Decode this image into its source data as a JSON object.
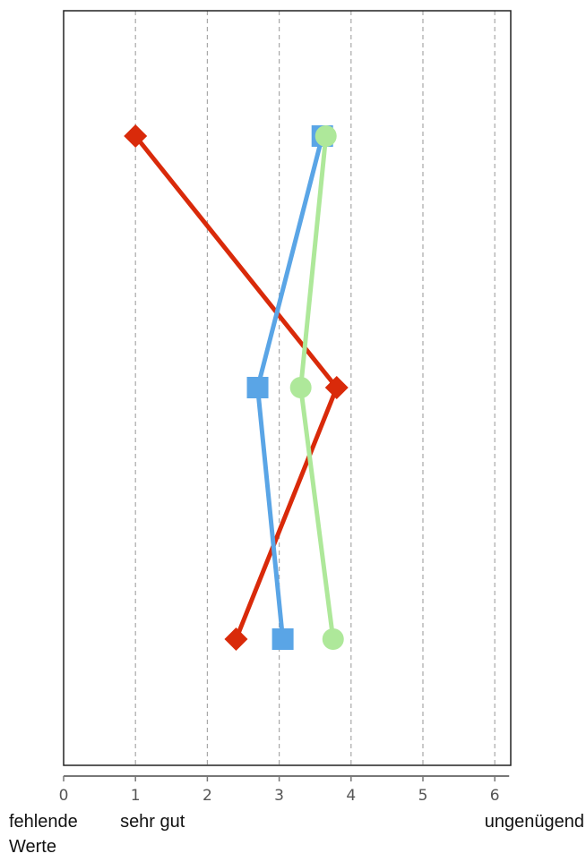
{
  "chart_data": {
    "type": "line",
    "orientation": "horizontal",
    "xlim": [
      0,
      6.2
    ],
    "ylim": [
      0,
      3
    ],
    "x_ticks": [
      0,
      1,
      2,
      3,
      4,
      5,
      6
    ],
    "x_ticks_text": [
      "0",
      "1",
      "2",
      "3",
      "4",
      "5",
      "6"
    ],
    "x_category_labels": [
      {
        "value": 0,
        "lines": [
          "fehlende",
          "Werte"
        ]
      },
      {
        "value": 1,
        "lines": [
          "sehr gut"
        ]
      },
      {
        "value": 6,
        "lines": [
          "ungenügend"
        ]
      }
    ],
    "y_positions": [
      1,
      2,
      3
    ],
    "grid": {
      "vertical_dashed": true
    },
    "legend": "none",
    "series": [
      {
        "marker": "diamond",
        "color": "#d92a0a",
        "points": [
          {
            "x": 1.0,
            "y": 1
          },
          {
            "x": 3.8,
            "y": 2
          },
          {
            "x": 2.4,
            "y": 3
          }
        ]
      },
      {
        "marker": "square",
        "color": "#5aa5e6",
        "points": [
          {
            "x": 3.6,
            "y": 1
          },
          {
            "x": 2.7,
            "y": 2
          },
          {
            "x": 3.05,
            "y": 3
          }
        ]
      },
      {
        "marker": "circle",
        "color": "#aee89a",
        "points": [
          {
            "x": 3.65,
            "y": 1
          },
          {
            "x": 3.3,
            "y": 2
          },
          {
            "x": 3.75,
            "y": 3
          }
        ]
      }
    ]
  }
}
